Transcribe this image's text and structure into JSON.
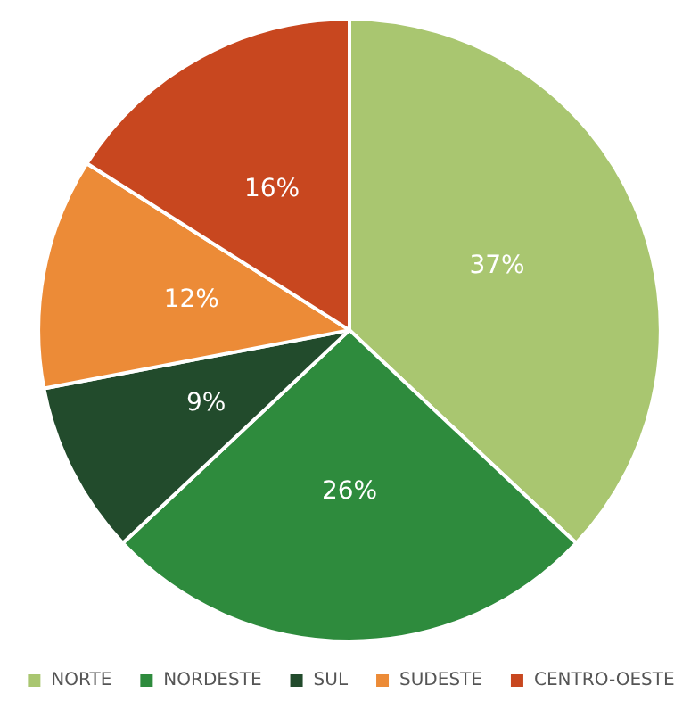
{
  "chart_data": {
    "type": "pie",
    "categories": [
      "NORTE",
      "NORDESTE",
      "SUL",
      "SUDESTE",
      "CENTRO-OESTE"
    ],
    "values": [
      37,
      26,
      9,
      12,
      16
    ],
    "value_labels": [
      "37%",
      "26%",
      "9%",
      "12%",
      "16%"
    ],
    "colors": [
      "#a9c670",
      "#2e8b3d",
      "#224b2c",
      "#ec8b37",
      "#c8471f"
    ],
    "legend": "bottom"
  }
}
